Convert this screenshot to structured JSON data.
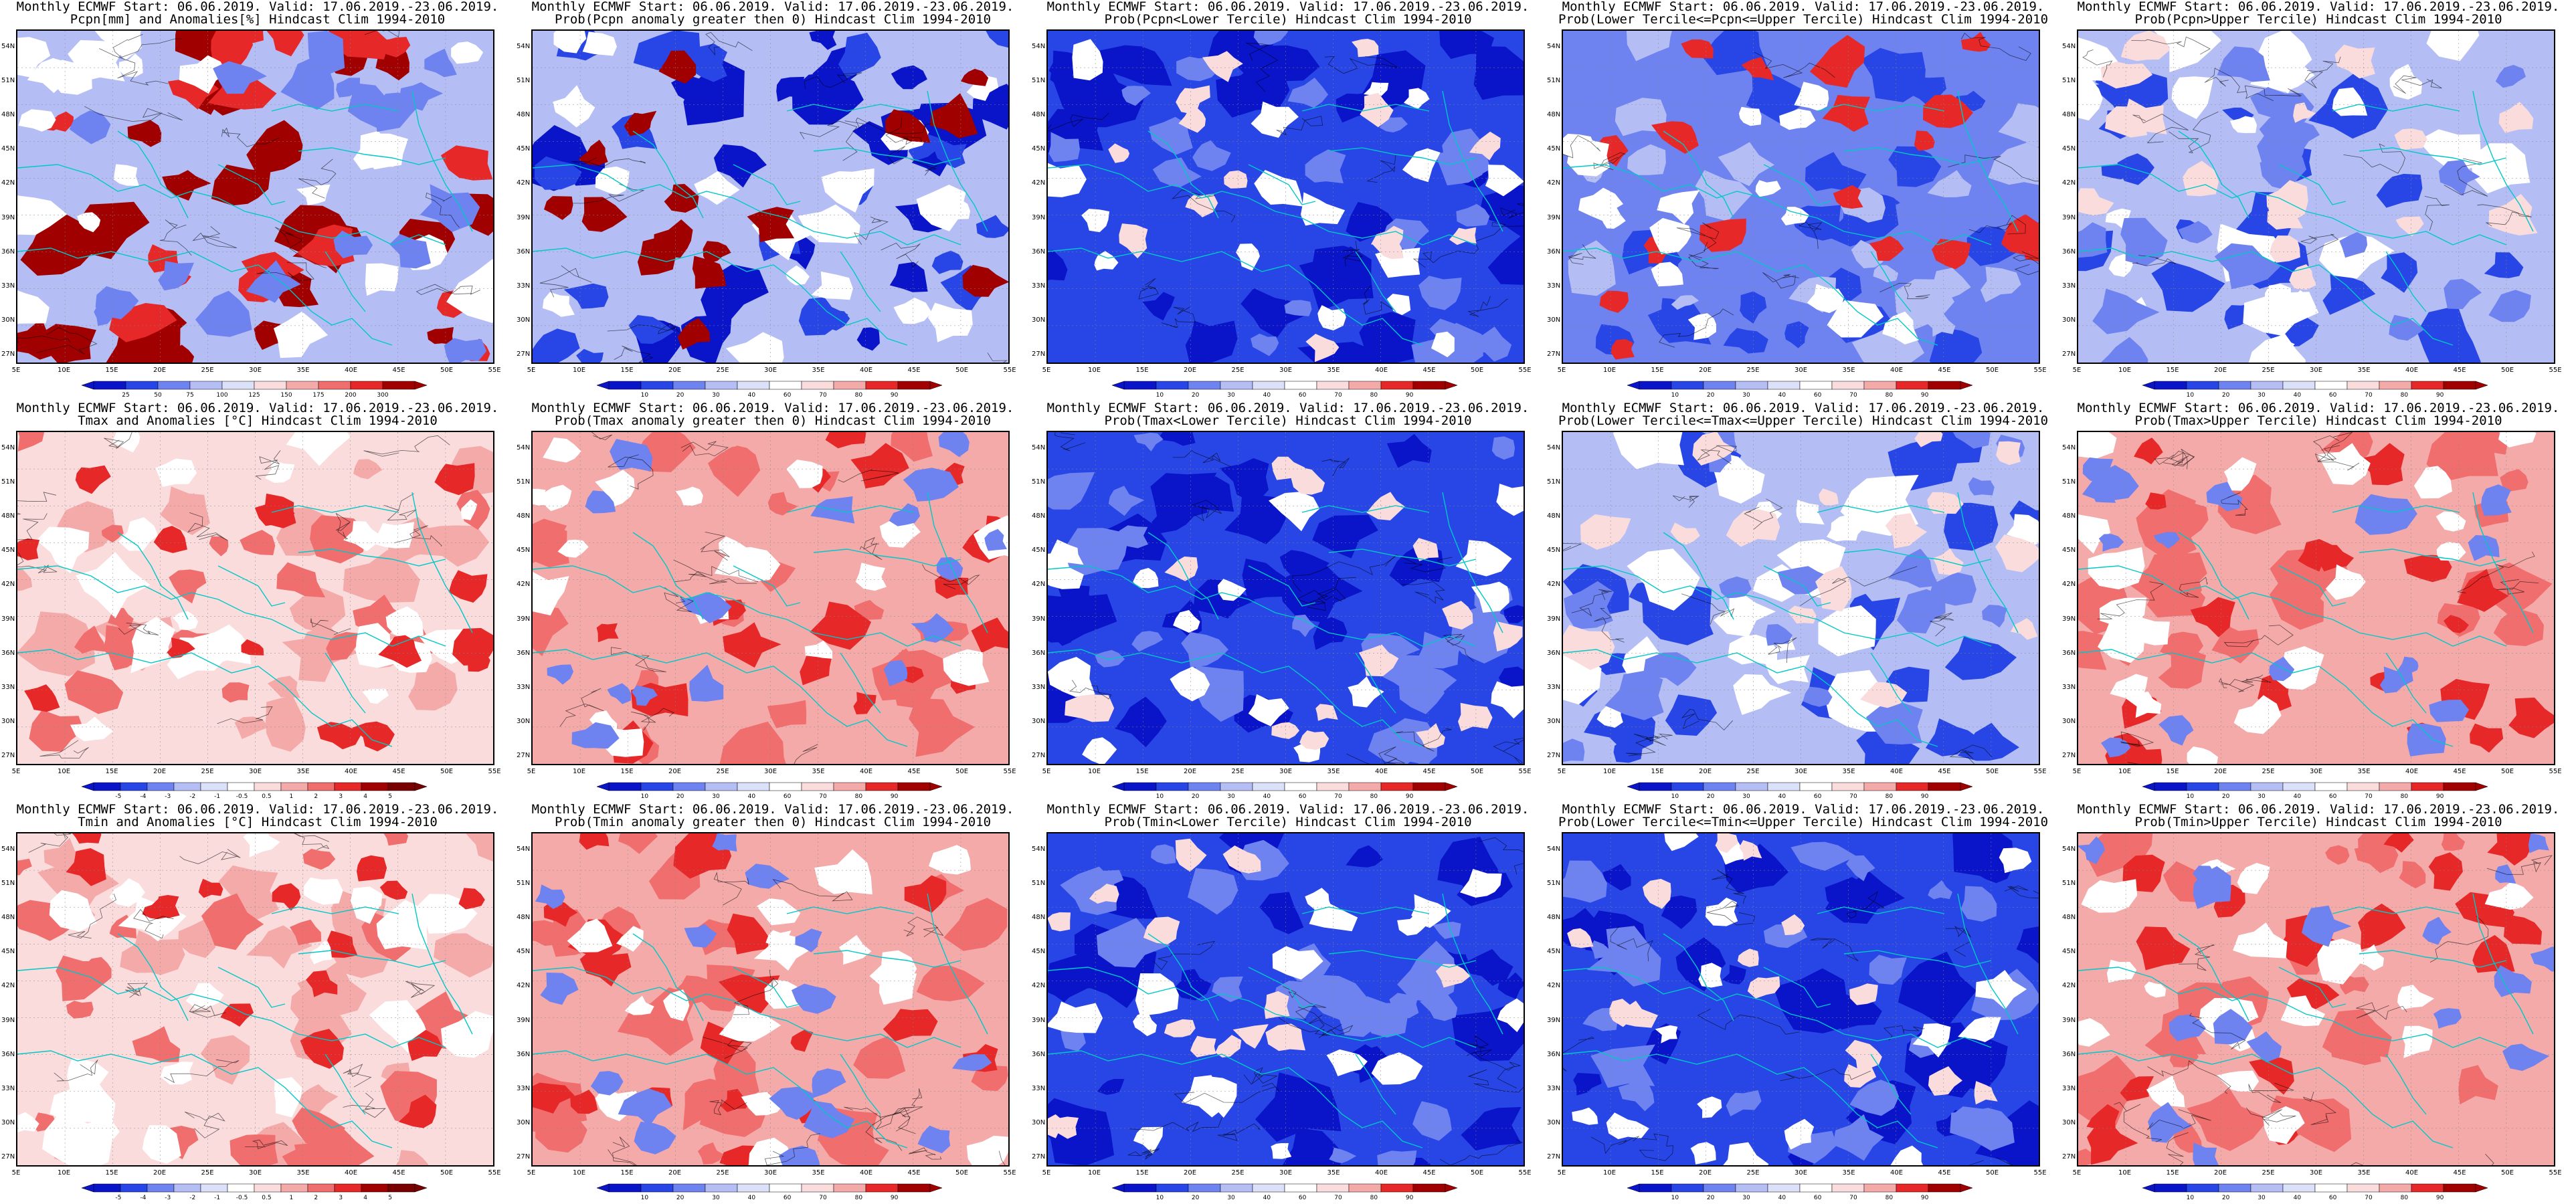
{
  "colors": {
    "deep_blue": "#0a14c8",
    "blue": "#2846e6",
    "mid_blue": "#6e82f0",
    "light_blue": "#b4bef5",
    "pale_blue": "#dce1fa",
    "white": "#ffffff",
    "pale_red": "#fadcdc",
    "light_red": "#f5aaaa",
    "mid_red": "#f06e6e",
    "red": "#e62828",
    "dark_red": "#a00000",
    "coast": "#00c8c8",
    "contour": "#000000"
  },
  "map": {
    "lat_labels": [
      "54N",
      "51N",
      "48N",
      "45N",
      "42N",
      "39N",
      "36N",
      "33N",
      "30N",
      "27N"
    ],
    "lon_labels": [
      "5E",
      "10E",
      "15E",
      "20E",
      "25E",
      "30E",
      "35E",
      "40E",
      "45E",
      "50E",
      "55E"
    ]
  },
  "panels": [
    {
      "id": "pcpn-anom",
      "title1": "Monthly ECMWF Start: 06.06.2019. Valid: 17.06.2019.-23.06.2019.",
      "title2": "Pcpn[mm] and Anomalies[%] Hindcast Clim 1994-2010",
      "scheme": "pcpn",
      "cbar_labels": [
        "25",
        "50",
        "75",
        "100",
        "125",
        "150",
        "175",
        "200",
        "300"
      ]
    },
    {
      "id": "pcpn-prob-pos",
      "title1": "Monthly ECMWF Start: 06.06.2019. Valid: 17.06.2019.-23.06.2019.",
      "title2": "Prob(Pcpn anomaly greater then 0) Hindcast Clim 1994-2010",
      "scheme": "prob_wet",
      "cbar_labels": [
        "10",
        "20",
        "30",
        "40",
        "60",
        "70",
        "80",
        "90"
      ]
    },
    {
      "id": "pcpn-prob-lower",
      "title1": "Monthly ECMWF Start: 06.06.2019. Valid: 17.06.2019.-23.06.2019.",
      "title2": "Prob(Pcpn<Lower Tercile) Hindcast Clim 1994-2010",
      "scheme": "prob_blue",
      "cbar_labels": [
        "10",
        "20",
        "30",
        "40",
        "60",
        "70",
        "80",
        "90"
      ]
    },
    {
      "id": "pcpn-prob-middle",
      "title1": "Monthly ECMWF Start: 06.06.2019. Valid: 17.06.2019.-23.06.2019.",
      "title2": "Prob(Lower Tercile<=Pcpn<=Upper Tercile) Hindcast Clim 1994-2010",
      "scheme": "prob_mixed",
      "cbar_labels": [
        "10",
        "20",
        "30",
        "40",
        "60",
        "70",
        "80",
        "90"
      ]
    },
    {
      "id": "pcpn-prob-upper",
      "title1": "Monthly ECMWF Start: 06.06.2019. Valid: 17.06.2019.-23.06.2019.",
      "title2": "Prob(Pcpn>Upper Tercile) Hindcast Clim 1994-2010",
      "scheme": "prob_blue_light",
      "cbar_labels": [
        "10",
        "20",
        "30",
        "40",
        "60",
        "70",
        "80",
        "90"
      ]
    },
    {
      "id": "tmax-anom",
      "title1": "Monthly ECMWF Start: 06.06.2019. Valid: 17.06.2019.-23.06.2019.",
      "title2": "Tmax and Anomalies [°C] Hindcast Clim 1994-2010",
      "scheme": "temp_warm",
      "cbar_labels": [
        "-5",
        "-4",
        "-3",
        "-2",
        "-1",
        "-0.5",
        "0.5",
        "1",
        "2",
        "3",
        "4",
        "5"
      ]
    },
    {
      "id": "tmax-prob-pos",
      "title1": "Monthly ECMWF Start: 06.06.2019. Valid: 17.06.2019.-23.06.2019.",
      "title2": "Prob(Tmax anomaly greater then 0) Hindcast Clim 1994-2010",
      "scheme": "prob_red",
      "cbar_labels": [
        "10",
        "20",
        "30",
        "40",
        "60",
        "70",
        "80",
        "90"
      ]
    },
    {
      "id": "tmax-prob-lower",
      "title1": "Monthly ECMWF Start: 06.06.2019. Valid: 17.06.2019.-23.06.2019.",
      "title2": "Prob(Tmax<Lower Tercile) Hindcast Clim 1994-2010",
      "scheme": "prob_blue",
      "cbar_labels": [
        "10",
        "20",
        "30",
        "40",
        "60",
        "70",
        "80",
        "90"
      ]
    },
    {
      "id": "tmax-prob-middle",
      "title1": "Monthly ECMWF Start: 06.06.2019. Valid: 17.06.2019.-23.06.2019.",
      "title2": "Prob(Lower Tercile<=Tmax<=Upper Tercile) Hindcast Clim 1994-2010",
      "scheme": "prob_blue_light",
      "cbar_labels": [
        "10",
        "20",
        "30",
        "40",
        "60",
        "70",
        "80",
        "90"
      ]
    },
    {
      "id": "tmax-prob-upper",
      "title1": "Monthly ECMWF Start: 06.06.2019. Valid: 17.06.2019.-23.06.2019.",
      "title2": "Prob(Tmax>Upper Tercile) Hindcast Clim 1994-2010",
      "scheme": "prob_red",
      "cbar_labels": [
        "10",
        "20",
        "30",
        "40",
        "60",
        "70",
        "80",
        "90"
      ]
    },
    {
      "id": "tmin-anom",
      "title1": "Monthly ECMWF Start: 06.06.2019. Valid: 17.06.2019.-23.06.2019.",
      "title2": "Tmin and Anomalies [°C] Hindcast Clim 1994-2010",
      "scheme": "temp_warm",
      "cbar_labels": [
        "-5",
        "-4",
        "-3",
        "-2",
        "-1",
        "-0.5",
        "0.5",
        "1",
        "2",
        "3",
        "4",
        "5"
      ]
    },
    {
      "id": "tmin-prob-pos",
      "title1": "Monthly ECMWF Start: 06.06.2019. Valid: 17.06.2019.-23.06.2019.",
      "title2": "Prob(Tmin anomaly greater then 0) Hindcast Clim 1994-2010",
      "scheme": "prob_red",
      "cbar_labels": [
        "10",
        "20",
        "30",
        "40",
        "60",
        "70",
        "80",
        "90"
      ]
    },
    {
      "id": "tmin-prob-lower",
      "title1": "Monthly ECMWF Start: 06.06.2019. Valid: 17.06.2019.-23.06.2019.",
      "title2": "Prob(Tmin<Lower Tercile) Hindcast Clim 1994-2010",
      "scheme": "prob_blue",
      "cbar_labels": [
        "10",
        "20",
        "30",
        "40",
        "60",
        "70",
        "80",
        "90"
      ]
    },
    {
      "id": "tmin-prob-middle",
      "title1": "Monthly ECMWF Start: 06.06.2019. Valid: 17.06.2019.-23.06.2019.",
      "title2": "Prob(Lower Tercile<=Tmin<=Upper Tercile) Hindcast Clim 1994-2010",
      "scheme": "prob_blue",
      "cbar_labels": [
        "10",
        "20",
        "30",
        "40",
        "60",
        "70",
        "80",
        "90"
      ]
    },
    {
      "id": "tmin-prob-upper",
      "title1": "Monthly ECMWF Start: 06.06.2019. Valid: 17.06.2019.-23.06.2019.",
      "title2": "Prob(Tmin>Upper Tercile) Hindcast Clim 1994-2010",
      "scheme": "prob_red",
      "cbar_labels": [
        "10",
        "20",
        "30",
        "40",
        "60",
        "70",
        "80",
        "90"
      ]
    }
  ]
}
